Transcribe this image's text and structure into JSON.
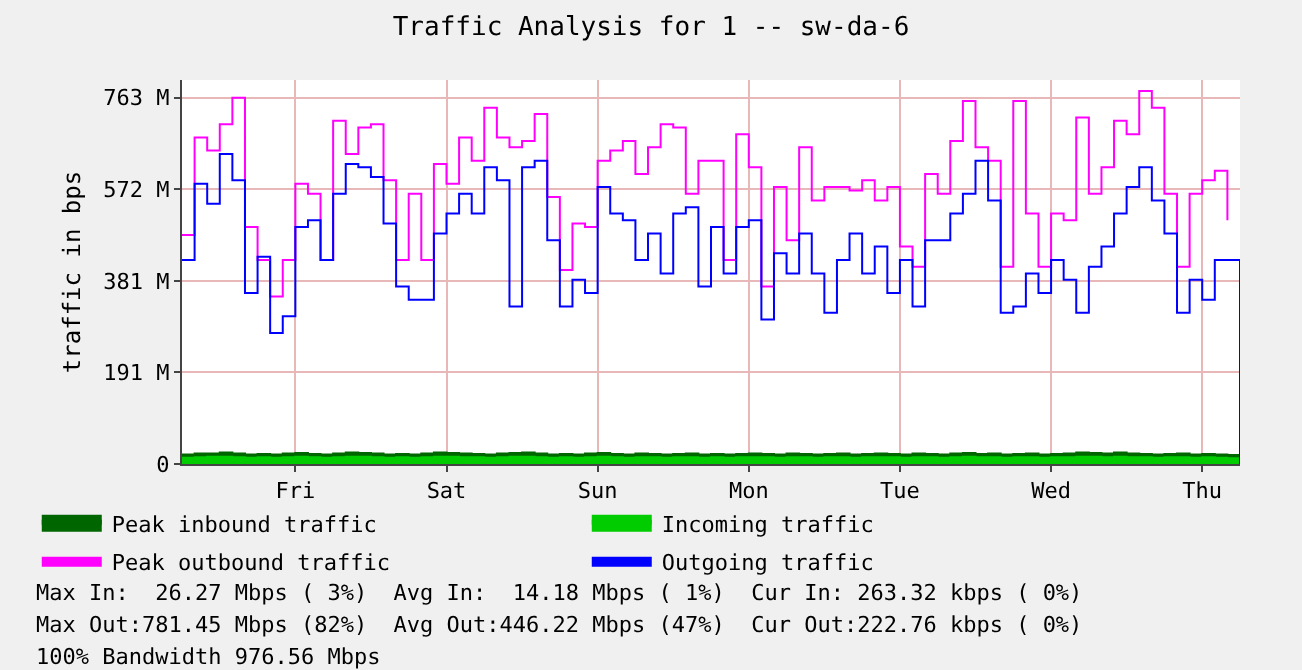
{
  "chart_data": {
    "type": "step",
    "title": "Traffic Analysis for 1 -- sw-da-6",
    "ylabel": "traffic in bps",
    "categories": [
      null,
      null,
      null,
      null,
      null,
      null,
      null,
      null,
      null,
      "Fri",
      null,
      null,
      null,
      null,
      null,
      null,
      null,
      null,
      null,
      null,
      null,
      "Sat",
      null,
      null,
      null,
      null,
      null,
      null,
      null,
      null,
      null,
      null,
      null,
      "Sun",
      null,
      null,
      null,
      null,
      null,
      null,
      null,
      null,
      null,
      null,
      null,
      "Mon",
      null,
      null,
      null,
      null,
      null,
      null,
      null,
      null,
      null,
      null,
      null,
      "Tue",
      null,
      null,
      null,
      null,
      null,
      null,
      null,
      null,
      null,
      null,
      null,
      "Wed",
      null,
      null,
      null,
      null,
      null,
      null,
      null,
      null,
      null,
      null,
      null,
      "Thu",
      null,
      null,
      null
    ],
    "ylim": [
      0,
      800
    ],
    "yticks": [
      0,
      {
        "value": 191,
        "label": "191 M"
      },
      {
        "value": 381,
        "label": "381 M"
      },
      {
        "value": 572,
        "label": "572 M"
      },
      {
        "value": 763,
        "label": "763 M"
      }
    ],
    "grid": true,
    "legend": "bottom left",
    "series": [
      {
        "name": "Peak inbound traffic",
        "type": "area",
        "color": "#006600",
        "values": [
          20,
          22,
          22,
          24,
          22,
          20,
          21,
          20,
          22,
          23,
          21,
          20,
          22,
          24,
          23,
          22,
          20,
          21,
          20,
          22,
          24,
          23,
          22,
          21,
          20,
          22,
          23,
          24,
          22,
          20,
          21,
          20,
          22,
          23,
          21,
          20,
          22,
          21,
          20,
          21,
          22,
          20,
          21,
          20,
          21,
          22,
          21,
          20,
          22,
          21,
          20,
          21,
          22,
          20,
          21,
          22,
          21,
          20,
          22,
          21,
          20,
          22,
          23,
          21,
          22,
          20,
          21,
          22,
          20,
          21,
          22,
          24,
          23,
          22,
          24,
          22,
          21,
          20,
          21,
          22,
          20,
          21,
          20,
          19,
          18
        ]
      },
      {
        "name": "Incoming traffic",
        "type": "area",
        "color": "#00cc00",
        "values": [
          13,
          14,
          15,
          15,
          14,
          13,
          14,
          13,
          14,
          15,
          14,
          13,
          14,
          15,
          15,
          14,
          13,
          14,
          13,
          14,
          15,
          15,
          14,
          14,
          13,
          14,
          15,
          15,
          14,
          13,
          14,
          13,
          14,
          15,
          14,
          13,
          14,
          14,
          13,
          14,
          14,
          13,
          14,
          13,
          14,
          14,
          14,
          13,
          14,
          14,
          13,
          14,
          14,
          13,
          14,
          14,
          14,
          13,
          14,
          14,
          13,
          14,
          15,
          14,
          14,
          13,
          14,
          14,
          13,
          14,
          14,
          15,
          15,
          14,
          15,
          14,
          14,
          13,
          14,
          14,
          13,
          14,
          13,
          12,
          12
        ]
      },
      {
        "name": "Peak outbound traffic",
        "color": "#ff00ff",
        "values": [
          477,
          680,
          653,
          708,
          763,
          494,
          425,
          349,
          425,
          584,
          563,
          425,
          715,
          646,
          701,
          708,
          591,
          425,
          563,
          425,
          625,
          584,
          680,
          632,
          742,
          680,
          660,
          673,
          729,
          556,
          404,
          501,
          494,
          632,
          653,
          673,
          604,
          660,
          708,
          701,
          563,
          632,
          632,
          425,
          687,
          618,
          370,
          577,
          466,
          660,
          549,
          577,
          577,
          570,
          591,
          549,
          577,
          453,
          411,
          604,
          563,
          673,
          756,
          660,
          632,
          411,
          756,
          522,
          411,
          522,
          508,
          722,
          563,
          618,
          715,
          687,
          777,
          742,
          563,
          411,
          563,
          591,
          611,
          508,
          null
        ]
      },
      {
        "name": "Outgoing traffic",
        "color": "#0000ff",
        "values": [
          425,
          584,
          542,
          646,
          591,
          356,
          432,
          273,
          308,
          494,
          508,
          425,
          563,
          625,
          618,
          598,
          501,
          370,
          342,
          342,
          480,
          522,
          563,
          522,
          618,
          591,
          328,
          618,
          632,
          466,
          328,
          384,
          356,
          577,
          522,
          508,
          425,
          480,
          397,
          522,
          535,
          370,
          494,
          397,
          494,
          508,
          301,
          439,
          397,
          480,
          397,
          315,
          425,
          480,
          397,
          453,
          356,
          425,
          328,
          466,
          466,
          522,
          563,
          632,
          549,
          315,
          328,
          397,
          356,
          425,
          384,
          315,
          411,
          453,
          522,
          577,
          618,
          549,
          480,
          315,
          384,
          342,
          425,
          425,
          0
        ]
      }
    ],
    "annotations": [
      "Max In:  26.27 Mbps ( 3%)  Avg In:  14.18 Mbps ( 1%)  Cur In: 263.32 kbps ( 0%)",
      "Max Out:781.45 Mbps (82%)  Avg Out:446.22 Mbps (47%)  Cur Out:222.76 kbps ( 0%)",
      "100% Bandwidth 976.56 Mbps"
    ]
  }
}
